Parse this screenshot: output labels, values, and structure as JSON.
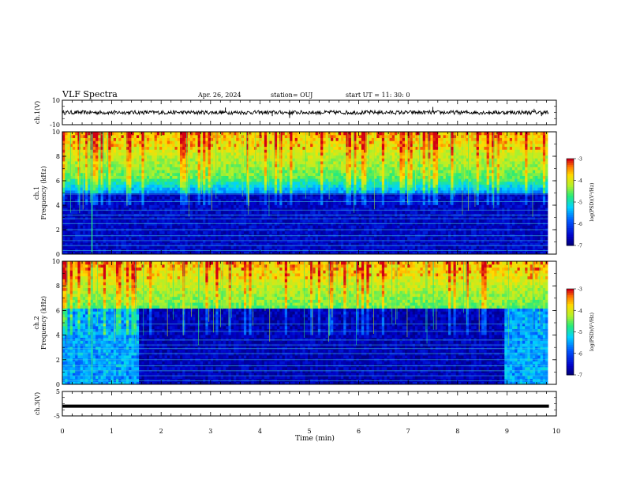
{
  "header": {
    "title": "VLF Spectra",
    "date": "Apr. 26, 2024",
    "station": "station= OUJ",
    "start": "start  UT =   11: 30: 0"
  },
  "chart_data": [
    {
      "type": "line",
      "name": "ch1-waveform",
      "ylabel": "ch.1(V)",
      "ylim": [
        -10,
        10
      ],
      "y_ticks": [
        "10",
        "-10"
      ],
      "xlim": [
        0,
        10
      ],
      "baseline": 0,
      "spikes": [
        {
          "x": 1.05,
          "y": -2
        },
        {
          "x": 3.3,
          "y": 4
        },
        {
          "x": 4.6,
          "y": -4.5
        },
        {
          "x": 4.25,
          "y": -3
        },
        {
          "x": 7.5,
          "y": 4.5
        },
        {
          "x": 9.55,
          "y": 3
        },
        {
          "x": 9.7,
          "y": -3
        }
      ]
    },
    {
      "type": "heatmap",
      "name": "ch1-spectrogram",
      "ylabel": "ch.1\nFrequency (kHz)",
      "ylabel_lines": [
        "ch.1",
        "Frequency (kHz)"
      ],
      "xlim": [
        0,
        10
      ],
      "ylim": [
        0,
        10
      ],
      "y_ticks": [
        "0",
        "2",
        "4",
        "6",
        "8",
        "10"
      ],
      "colorbar": {
        "label": "log(PSD)(V²/Hz)",
        "range": [
          -7,
          -3
        ],
        "ticks": [
          "-3",
          "-4",
          "-5",
          "-6",
          "-7"
        ]
      }
    },
    {
      "type": "heatmap",
      "name": "ch2-spectrogram",
      "ylabel": "ch.2\nFrequency (kHz)",
      "ylabel_lines": [
        "ch.2",
        "Frequency (kHz)"
      ],
      "xlim": [
        0,
        10
      ],
      "ylim": [
        0,
        10
      ],
      "y_ticks": [
        "0",
        "2",
        "4",
        "6",
        "8",
        "10"
      ],
      "colorbar": {
        "label": "log(PSD)(V²/Hz)",
        "range": [
          -7,
          -3
        ],
        "ticks": [
          "-3",
          "-4",
          "-5",
          "-6",
          "-7"
        ]
      }
    },
    {
      "type": "line",
      "name": "ch3-waveform",
      "ylabel": "ch.3(V)",
      "ylim": [
        -5,
        5
      ],
      "y_ticks": [
        "5",
        "-5"
      ],
      "xlim": [
        0,
        10
      ],
      "value": -1.0
    }
  ],
  "x_axis": {
    "label": "Time (min)",
    "ticks": [
      "0",
      "1",
      "2",
      "3",
      "4",
      "5",
      "6",
      "7",
      "8",
      "9",
      "10"
    ]
  },
  "colors": {
    "low": "#00007a",
    "mid": "#00c8ff",
    "high": "#ffe000",
    "peak": "#e01010"
  }
}
